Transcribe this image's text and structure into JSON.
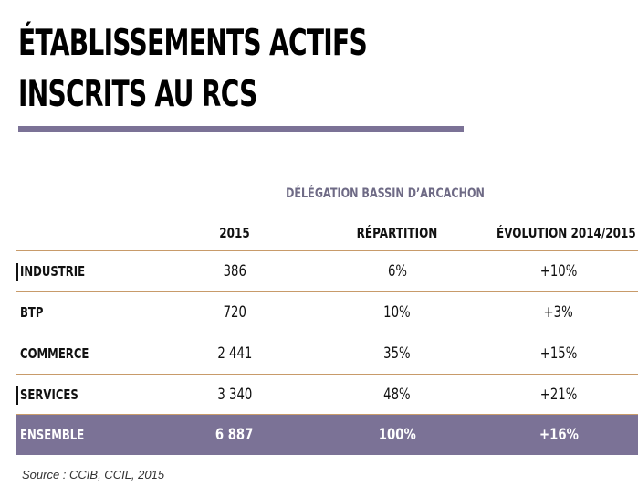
{
  "colors": {
    "accent": "#7b7296",
    "header_text": "#6e6a85",
    "divider": "#c89b6a",
    "total_row_bg": "#7b7296",
    "total_row_text": "#ffffff"
  },
  "title": "ÉTABLISSEMENTS ACTIFS INSCRITS AU RCS",
  "chart_data": {
    "type": "table",
    "group_header": "DÉLÉGATION BASSIN D’ARCACHON",
    "columns": [
      "",
      "2015",
      "RÉPARTITION",
      "ÉVOLUTION 2014/2015"
    ],
    "rows": [
      {
        "label": "INDUSTRIE",
        "value_2015": "386",
        "repartition": "6%",
        "evolution": "+10%"
      },
      {
        "label": "BTP",
        "value_2015": "720",
        "repartition": "10%",
        "evolution": "+3%"
      },
      {
        "label": "COMMERCE",
        "value_2015": "2 441",
        "repartition": "35%",
        "evolution": "+15%"
      },
      {
        "label": "SERVICES",
        "value_2015": "3 340",
        "repartition": "48%",
        "evolution": "+21%"
      }
    ],
    "total": {
      "label": "ENSEMBLE",
      "value_2015": "6 887",
      "repartition": "100%",
      "evolution": "+16%"
    }
  },
  "source": "Source : CCIB, CCIL, 2015"
}
